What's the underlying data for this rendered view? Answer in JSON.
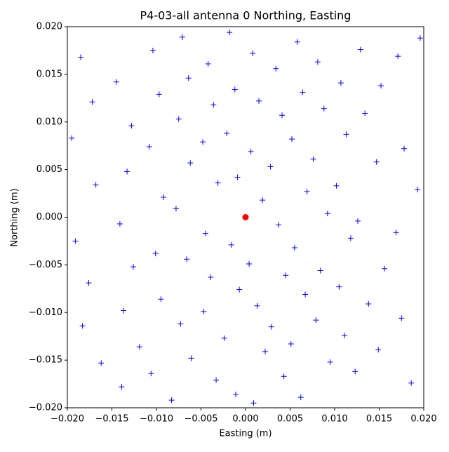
{
  "chart_data": {
    "type": "scatter",
    "title": "P4-03-all antenna 0 Northing, Easting",
    "x_label": "Easting (m)",
    "y_label": "Northing (m)",
    "xlim": [
      -0.02,
      0.02
    ],
    "ylim": [
      -0.02,
      0.02
    ],
    "xticks": [
      {
        "value": -0.02,
        "label": "−0.020"
      },
      {
        "value": -0.015,
        "label": "−0.015"
      },
      {
        "value": -0.01,
        "label": "−0.010"
      },
      {
        "value": -0.005,
        "label": "−0.005"
      },
      {
        "value": 0,
        "label": "0.000"
      },
      {
        "value": 0.005,
        "label": "0.005"
      },
      {
        "value": 0.01,
        "label": "0.010"
      },
      {
        "value": 0.015,
        "label": "0.015"
      },
      {
        "value": 0.02,
        "label": "0.020"
      }
    ],
    "yticks": [
      {
        "value": -0.02,
        "label": "−0.020"
      },
      {
        "value": -0.015,
        "label": "−0.015"
      },
      {
        "value": -0.01,
        "label": "−0.010"
      },
      {
        "value": -0.005,
        "label": "−0.005"
      },
      {
        "value": 0,
        "label": "0.000"
      },
      {
        "value": 0.005,
        "label": "0.005"
      },
      {
        "value": 0.01,
        "label": "0.010"
      },
      {
        "value": 0.015,
        "label": "0.015"
      },
      {
        "value": 0.02,
        "label": "0.020"
      }
    ],
    "series": [
      {
        "color": "#0000ff",
        "marker": "+",
        "x": [
          -0.0185,
          -0.0172,
          -0.0195,
          -0.0168,
          -0.0191,
          -0.0176,
          -0.0183,
          -0.0162,
          -0.0139,
          -0.0145,
          -0.0128,
          -0.0133,
          -0.0141,
          -0.0126,
          -0.0137,
          -0.0119,
          -0.0104,
          -0.0097,
          -0.0108,
          -0.0092,
          -0.0101,
          -0.0095,
          -0.0106,
          -0.0083,
          -0.0071,
          -0.0064,
          -0.0075,
          -0.0062,
          -0.0078,
          -0.0066,
          -0.0073,
          -0.0061,
          -0.0042,
          -0.0036,
          -0.0048,
          -0.0031,
          -0.0045,
          -0.0039,
          -0.0047,
          -0.0033,
          -0.0018,
          -0.0012,
          -0.0021,
          -0.0009,
          -0.0016,
          -0.0007,
          -0.0024,
          -0.0011,
          0.0008,
          0.0015,
          0.0006,
          0.0019,
          0.0004,
          0.0013,
          0.0022,
          0.0009,
          0.0034,
          0.0041,
          0.0028,
          0.0037,
          0.0045,
          0.0029,
          0.0043,
          0.0058,
          0.0064,
          0.0052,
          0.0069,
          0.0055,
          0.0067,
          0.0051,
          0.0062,
          0.0081,
          0.0088,
          0.0076,
          0.0092,
          0.0084,
          0.0079,
          0.0095,
          0.0107,
          0.0113,
          0.0102,
          0.0118,
          0.0105,
          0.0111,
          0.0129,
          0.0134,
          0.0126,
          0.0138,
          0.0123,
          0.0152,
          0.0147,
          0.0156,
          0.0149,
          0.0171,
          0.0178,
          0.0169,
          0.0175,
          0.0186,
          0.0193,
          0.0196
        ],
        "y": [
          0.0168,
          0.0121,
          0.0083,
          0.0034,
          -0.0025,
          -0.0069,
          -0.0114,
          -0.0153,
          -0.0178,
          0.0142,
          0.0096,
          0.0048,
          -0.0007,
          -0.0052,
          -0.0098,
          -0.0136,
          0.0175,
          0.0129,
          0.0074,
          0.0021,
          -0.0038,
          -0.0086,
          -0.0164,
          -0.0192,
          0.0189,
          0.0146,
          0.0103,
          0.0057,
          0.0009,
          -0.0044,
          -0.0112,
          -0.0148,
          0.0161,
          0.0118,
          0.0079,
          0.0036,
          -0.0017,
          -0.0063,
          -0.0099,
          -0.0171,
          0.0194,
          0.0134,
          0.0088,
          0.0042,
          -0.0029,
          -0.0076,
          -0.0127,
          -0.0186,
          0.0172,
          0.0122,
          0.0069,
          0.0018,
          -0.0049,
          -0.0093,
          -0.0141,
          -0.0195,
          0.0156,
          0.0107,
          0.0053,
          -0.0008,
          -0.0061,
          -0.0115,
          -0.0167,
          0.0184,
          0.0131,
          0.0082,
          0.0027,
          -0.0032,
          -0.0081,
          -0.0133,
          -0.0189,
          0.0163,
          0.0114,
          0.0061,
          0.0004,
          -0.0056,
          -0.0108,
          -0.0152,
          0.0141,
          0.0087,
          0.0033,
          -0.0022,
          -0.0073,
          -0.0124,
          0.0176,
          0.0109,
          -0.0004,
          -0.0091,
          -0.0162,
          0.0138,
          0.0058,
          -0.0054,
          -0.0139,
          0.0169,
          0.0072,
          -0.0016,
          -0.0106,
          -0.0174,
          0.0029,
          0.0188
        ]
      },
      {
        "color": "#ff0000",
        "marker": "o",
        "x": [
          0
        ],
        "y": [
          0
        ]
      }
    ]
  }
}
